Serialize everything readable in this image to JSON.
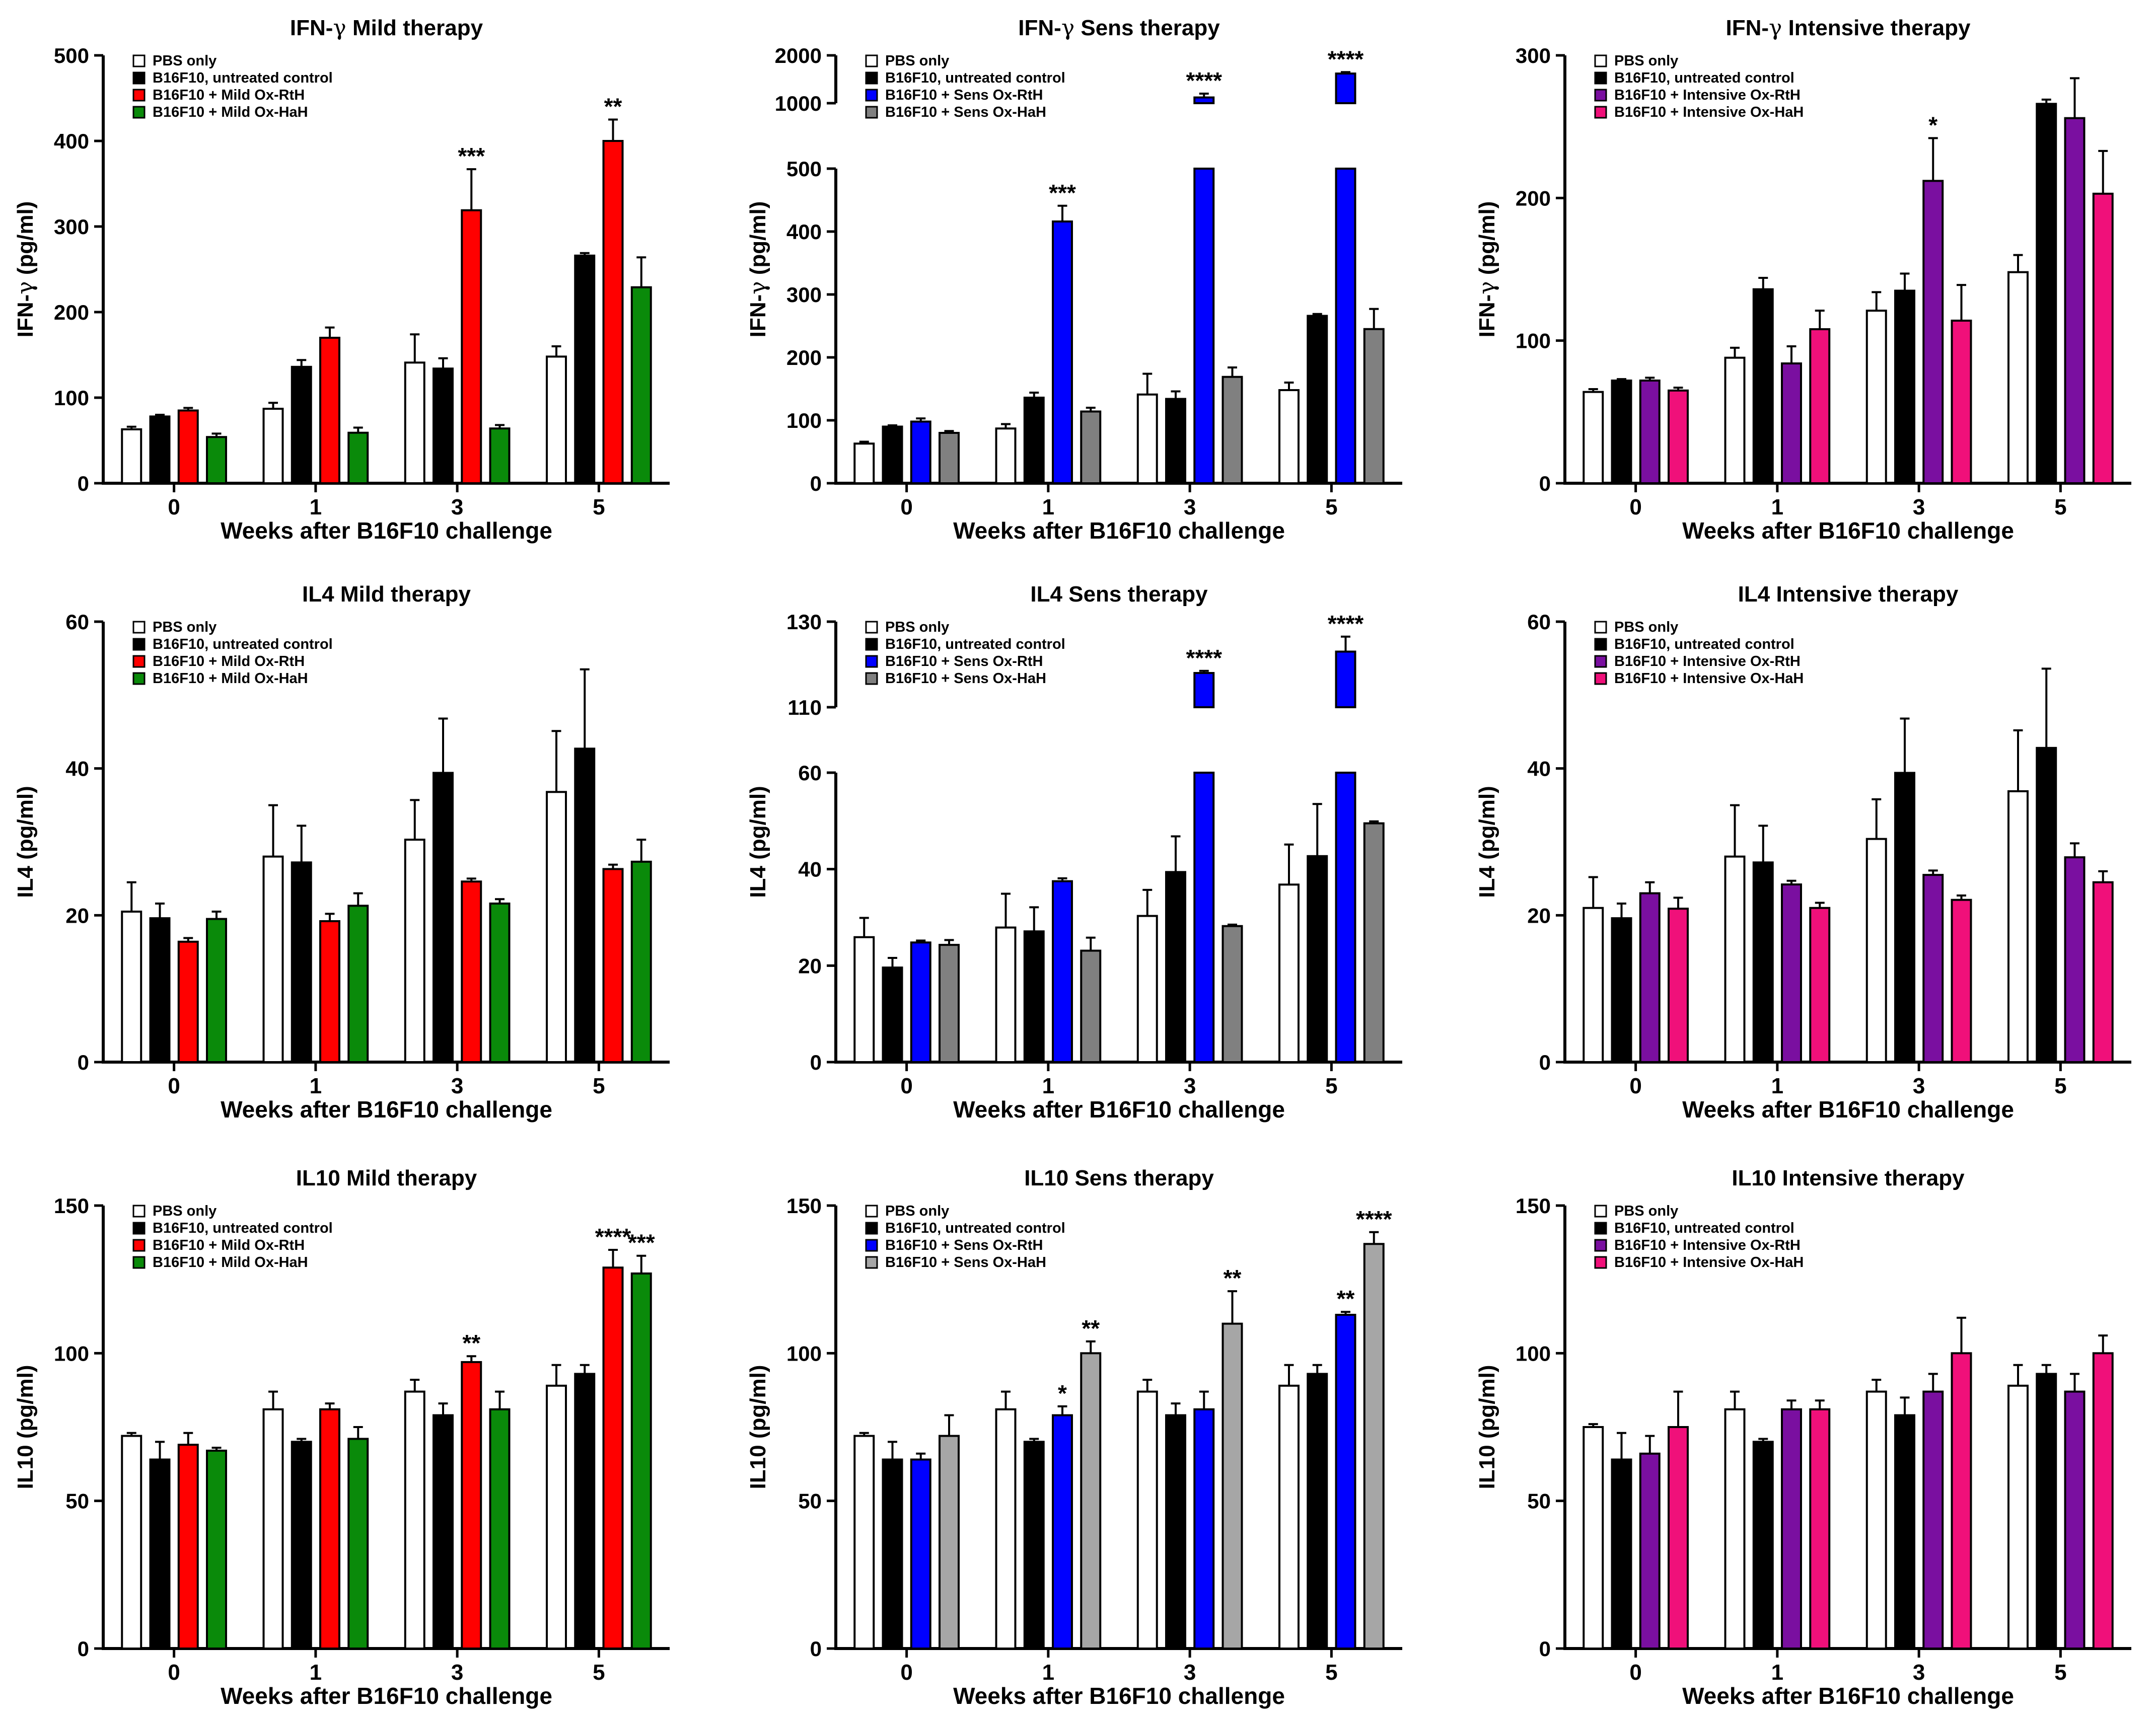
{
  "figure": {
    "x_ticks": [
      "0",
      "1",
      "3",
      "5"
    ],
    "x_label": "Weeks after B16F10 challenge",
    "colors": {
      "pbs": "#ffffff",
      "untreated": "#000000",
      "mild_rth": "#ff0000",
      "mild_hah": "#0a8a0a",
      "sens_rth": "#0000ff",
      "sens_hah_ifn": "#808080",
      "sens_hah_il": "#a6a6a6",
      "int_rth": "#7a0fa0",
      "int_hah": "#f0107a"
    }
  },
  "chart_data": [
    {
      "type": "bar",
      "title_prefix": "IFN-",
      "title_greek": "γ",
      "title_suffix": " Mild therapy",
      "ylabel_prefix": "IFN-",
      "ylabel_greek": "γ",
      "ylabel_suffix": " (pg/ml)",
      "categories": [
        "0",
        "1",
        "3",
        "5"
      ],
      "xlabel": "Weeks after B16F10 challenge",
      "ylim": [
        0,
        500
      ],
      "yticks": [
        0,
        100,
        200,
        300,
        400,
        500
      ],
      "series": [
        {
          "name": "PBS only",
          "color_key": "pbs",
          "values": [
            63,
            87,
            141,
            148
          ],
          "errors": [
            3,
            7,
            33,
            12
          ]
        },
        {
          "name": "B16F10, untreated control",
          "color_key": "untreated",
          "values": [
            78,
            136,
            134,
            266
          ],
          "errors": [
            2,
            8,
            12,
            3
          ]
        },
        {
          "name": "B16F10 + Mild Ox-RtH",
          "color_key": "mild_rth",
          "values": [
            85,
            170,
            319,
            400
          ],
          "errors": [
            3,
            12,
            48,
            25
          ]
        },
        {
          "name": "B16F10 + Mild Ox-HaH",
          "color_key": "mild_hah",
          "values": [
            54,
            59,
            64,
            229
          ],
          "errors": [
            4,
            6,
            4,
            35
          ]
        }
      ],
      "annotations": [
        {
          "category": "3",
          "series": 2,
          "label": "***"
        },
        {
          "category": "5",
          "series": 2,
          "label": "**"
        }
      ]
    },
    {
      "type": "bar",
      "title_prefix": "IFN-",
      "title_greek": "γ",
      "title_suffix": " Sens therapy",
      "ylabel_prefix": "IFN-",
      "ylabel_greek": "γ",
      "ylabel_suffix": " (pg/ml)",
      "categories": [
        "0",
        "1",
        "3",
        "5"
      ],
      "xlabel": "Weeks after B16F10 challenge",
      "ylim": [
        0,
        500
      ],
      "yticks": [
        0,
        100,
        200,
        300,
        400,
        500
      ],
      "break": {
        "upper_ylim": [
          1000,
          2000
        ],
        "upper_yticks": [
          1000,
          2000
        ]
      },
      "series": [
        {
          "name": "PBS only",
          "color_key": "pbs",
          "values": [
            63,
            87,
            141,
            148
          ],
          "errors": [
            3,
            7,
            33,
            12
          ]
        },
        {
          "name": "B16F10, untreated control",
          "color_key": "untreated",
          "values": [
            90,
            136,
            134,
            266
          ],
          "errors": [
            2,
            8,
            12,
            3
          ]
        },
        {
          "name": "B16F10 + Sens Ox-RtH",
          "color_key": "sens_rth",
          "values": [
            98,
            416,
            1120,
            1620
          ],
          "errors": [
            5,
            25,
            80,
            30
          ]
        },
        {
          "name": "B16F10 + Sens Ox-HaH",
          "color_key": "sens_hah_ifn",
          "values": [
            80,
            114,
            169,
            245
          ],
          "errors": [
            3,
            6,
            15,
            32
          ]
        }
      ],
      "annotations": [
        {
          "category": "1",
          "series": 2,
          "label": "***"
        },
        {
          "category": "3",
          "series": 2,
          "label": "****"
        },
        {
          "category": "5",
          "series": 2,
          "label": "****"
        }
      ]
    },
    {
      "type": "bar",
      "title_prefix": "IFN-",
      "title_greek": "γ",
      "title_suffix": " Intensive therapy",
      "ylabel_prefix": "IFN-",
      "ylabel_greek": "γ",
      "ylabel_suffix": " (pg/ml)",
      "categories": [
        "0",
        "1",
        "3",
        "5"
      ],
      "xlabel": "Weeks after B16F10 challenge",
      "ylim": [
        0,
        300
      ],
      "yticks": [
        0,
        100,
        200,
        300
      ],
      "series": [
        {
          "name": "PBS only",
          "color_key": "pbs",
          "values": [
            64,
            88,
            121,
            148
          ],
          "errors": [
            2,
            7,
            13,
            12
          ]
        },
        {
          "name": "B16F10, untreated control",
          "color_key": "untreated",
          "values": [
            72,
            136,
            135,
            266
          ],
          "errors": [
            1,
            8,
            12,
            3
          ]
        },
        {
          "name": "B16F10 + Intensive Ox-RtH",
          "color_key": "int_rth",
          "values": [
            72,
            84,
            212,
            256
          ],
          "errors": [
            2,
            12,
            30,
            28
          ]
        },
        {
          "name": "B16F10 + Intensive Ox-HaH",
          "color_key": "int_hah",
          "values": [
            65,
            108,
            114,
            203
          ],
          "errors": [
            2,
            13,
            25,
            30
          ]
        }
      ],
      "annotations": [
        {
          "category": "3",
          "series": 2,
          "label": "*"
        }
      ]
    },
    {
      "type": "bar",
      "title": "IL4 Mild therapy",
      "ylabel": "IL4 (pg/ml)",
      "categories": [
        "0",
        "1",
        "3",
        "5"
      ],
      "xlabel": "Weeks after B16F10 challenge",
      "ylim": [
        0,
        60
      ],
      "yticks": [
        0,
        20,
        40,
        60
      ],
      "series": [
        {
          "name": "PBS only",
          "color_key": "pbs",
          "values": [
            20.5,
            28,
            30.3,
            36.8
          ],
          "errors": [
            4,
            7,
            5.4,
            8.3
          ]
        },
        {
          "name": "B16F10, untreated control",
          "color_key": "untreated",
          "values": [
            19.6,
            27.2,
            39.4,
            42.7
          ],
          "errors": [
            2,
            5,
            7.4,
            10.8
          ]
        },
        {
          "name": "B16F10 + Mild Ox-RtH",
          "color_key": "mild_rth",
          "values": [
            16.4,
            19.2,
            24.6,
            26.3
          ],
          "errors": [
            0.5,
            1,
            0.4,
            0.6
          ]
        },
        {
          "name": "B16F10 + Mild Ox-HaH",
          "color_key": "mild_hah",
          "values": [
            19.5,
            21.3,
            21.6,
            27.3
          ],
          "errors": [
            1,
            1.7,
            0.6,
            3
          ]
        }
      ],
      "annotations": []
    },
    {
      "type": "bar",
      "title": "IL4 Sens therapy",
      "ylabel": "IL4 (pg/ml)",
      "categories": [
        "0",
        "1",
        "3",
        "5"
      ],
      "xlabel": "Weeks after B16F10 challenge",
      "ylim": [
        0,
        60
      ],
      "yticks": [
        0,
        20,
        40,
        60
      ],
      "break": {
        "upper_ylim": [
          110,
          130
        ],
        "upper_yticks": [
          110,
          130
        ]
      },
      "series": [
        {
          "name": "PBS only",
          "color_key": "pbs",
          "values": [
            25.9,
            27.9,
            30.3,
            36.8
          ],
          "errors": [
            4,
            7,
            5.4,
            8.3
          ]
        },
        {
          "name": "B16F10, untreated control",
          "color_key": "untreated",
          "values": [
            19.6,
            27.1,
            39.4,
            42.7
          ],
          "errors": [
            2,
            5,
            7.4,
            10.8
          ]
        },
        {
          "name": "B16F10 + Sens Ox-RtH",
          "color_key": "sens_rth",
          "values": [
            24.8,
            37.5,
            118,
            123
          ],
          "errors": [
            0.4,
            0.6,
            0.5,
            3.5
          ]
        },
        {
          "name": "B16F10 + Sens Ox-HaH",
          "color_key": "sens_hah_ifn",
          "values": [
            24.3,
            23.1,
            28.2,
            49.5
          ],
          "errors": [
            1,
            2.7,
            0.3,
            0.4
          ]
        }
      ],
      "annotations": [
        {
          "category": "3",
          "series": 2,
          "label": "****"
        },
        {
          "category": "5",
          "series": 2,
          "label": "****"
        }
      ]
    },
    {
      "type": "bar",
      "title": "IL4 Intensive therapy",
      "ylabel": "IL4 (pg/ml)",
      "categories": [
        "0",
        "1",
        "3",
        "5"
      ],
      "xlabel": "Weeks after B16F10 challenge",
      "ylim": [
        0,
        60
      ],
      "yticks": [
        0,
        20,
        40,
        60
      ],
      "series": [
        {
          "name": "PBS only",
          "color_key": "pbs",
          "values": [
            21,
            28,
            30.4,
            36.9
          ],
          "errors": [
            4.2,
            7,
            5.4,
            8.3
          ]
        },
        {
          "name": "B16F10, untreated control",
          "color_key": "untreated",
          "values": [
            19.6,
            27.2,
            39.4,
            42.8
          ],
          "errors": [
            2,
            5,
            7.4,
            10.8
          ]
        },
        {
          "name": "B16F10 + Intensive Ox-RtH",
          "color_key": "int_rth",
          "values": [
            23,
            24.2,
            25.5,
            27.9
          ],
          "errors": [
            1.5,
            0.5,
            0.6,
            1.9
          ]
        },
        {
          "name": "B16F10 + Intensive Ox-HaH",
          "color_key": "int_hah",
          "values": [
            20.9,
            21,
            22.1,
            24.5
          ],
          "errors": [
            1.5,
            0.7,
            0.6,
            1.5
          ]
        }
      ],
      "annotations": []
    },
    {
      "type": "bar",
      "title": "IL10 Mild therapy",
      "ylabel": "IL10 (pg/ml)",
      "categories": [
        "0",
        "1",
        "3",
        "5"
      ],
      "xlabel": "Weeks after B16F10 challenge",
      "ylim": [
        0,
        150
      ],
      "yticks": [
        0,
        50,
        100,
        150
      ],
      "series": [
        {
          "name": "PBS only",
          "color_key": "pbs",
          "values": [
            72,
            81,
            87,
            89
          ],
          "errors": [
            1,
            6,
            4,
            7
          ]
        },
        {
          "name": "B16F10, untreated control",
          "color_key": "untreated",
          "values": [
            64,
            70,
            79,
            93
          ],
          "errors": [
            6,
            1,
            4,
            3
          ]
        },
        {
          "name": "B16F10 + Mild Ox-RtH",
          "color_key": "mild_rth",
          "values": [
            69,
            81,
            97,
            129
          ],
          "errors": [
            4,
            2,
            2,
            6
          ]
        },
        {
          "name": "B16F10 + Mild Ox-HaH",
          "color_key": "mild_hah",
          "values": [
            67,
            71,
            81,
            127
          ],
          "errors": [
            1,
            4,
            6,
            6
          ]
        }
      ],
      "annotations": [
        {
          "category": "3",
          "series": 2,
          "label": "**"
        },
        {
          "category": "5",
          "series": 2,
          "label": "****"
        },
        {
          "category": "5",
          "series": 3,
          "label": "***"
        }
      ]
    },
    {
      "type": "bar",
      "title": "IL10 Sens therapy",
      "ylabel": "IL10 (pg/ml)",
      "categories": [
        "0",
        "1",
        "3",
        "5"
      ],
      "xlabel": "Weeks after B16F10 challenge",
      "ylim": [
        0,
        150
      ],
      "yticks": [
        0,
        50,
        100,
        150
      ],
      "series": [
        {
          "name": "PBS only",
          "color_key": "pbs",
          "values": [
            72,
            81,
            87,
            89
          ],
          "errors": [
            1,
            6,
            4,
            7
          ]
        },
        {
          "name": "B16F10, untreated control",
          "color_key": "untreated",
          "values": [
            64,
            70,
            79,
            93
          ],
          "errors": [
            6,
            1,
            4,
            3
          ]
        },
        {
          "name": "B16F10 + Sens Ox-RtH",
          "color_key": "sens_rth",
          "values": [
            64,
            79,
            81,
            113
          ],
          "errors": [
            2,
            3,
            6,
            1
          ]
        },
        {
          "name": "B16F10 + Sens Ox-HaH",
          "color_key": "sens_hah_il",
          "values": [
            72,
            100,
            110,
            137
          ],
          "errors": [
            7,
            4,
            11,
            4
          ]
        }
      ],
      "annotations": [
        {
          "category": "1",
          "series": 2,
          "label": "*"
        },
        {
          "category": "1",
          "series": 3,
          "label": "**"
        },
        {
          "category": "3",
          "series": 3,
          "label": "**"
        },
        {
          "category": "5",
          "series": 2,
          "label": "**"
        },
        {
          "category": "5",
          "series": 3,
          "label": "****"
        }
      ]
    },
    {
      "type": "bar",
      "title": "IL10 Intensive therapy",
      "ylabel": "IL10 (pg/ml)",
      "categories": [
        "0",
        "1",
        "3",
        "5"
      ],
      "xlabel": "Weeks after B16F10 challenge",
      "ylim": [
        0,
        150
      ],
      "yticks": [
        0,
        50,
        100,
        150
      ],
      "series": [
        {
          "name": "PBS only",
          "color_key": "pbs",
          "values": [
            75,
            81,
            87,
            89
          ],
          "errors": [
            1,
            6,
            4,
            7
          ]
        },
        {
          "name": "B16F10, untreated control",
          "color_key": "untreated",
          "values": [
            64,
            70,
            79,
            93
          ],
          "errors": [
            9,
            1,
            6,
            3
          ]
        },
        {
          "name": "B16F10 + Intensive Ox-RtH",
          "color_key": "int_rth",
          "values": [
            66,
            81,
            87,
            87
          ],
          "errors": [
            6,
            3,
            6,
            6
          ]
        },
        {
          "name": "B16F10 + Intensive Ox-HaH",
          "color_key": "int_hah",
          "values": [
            75,
            81,
            100,
            100
          ],
          "errors": [
            12,
            3,
            12,
            6
          ]
        }
      ],
      "annotations": []
    }
  ]
}
